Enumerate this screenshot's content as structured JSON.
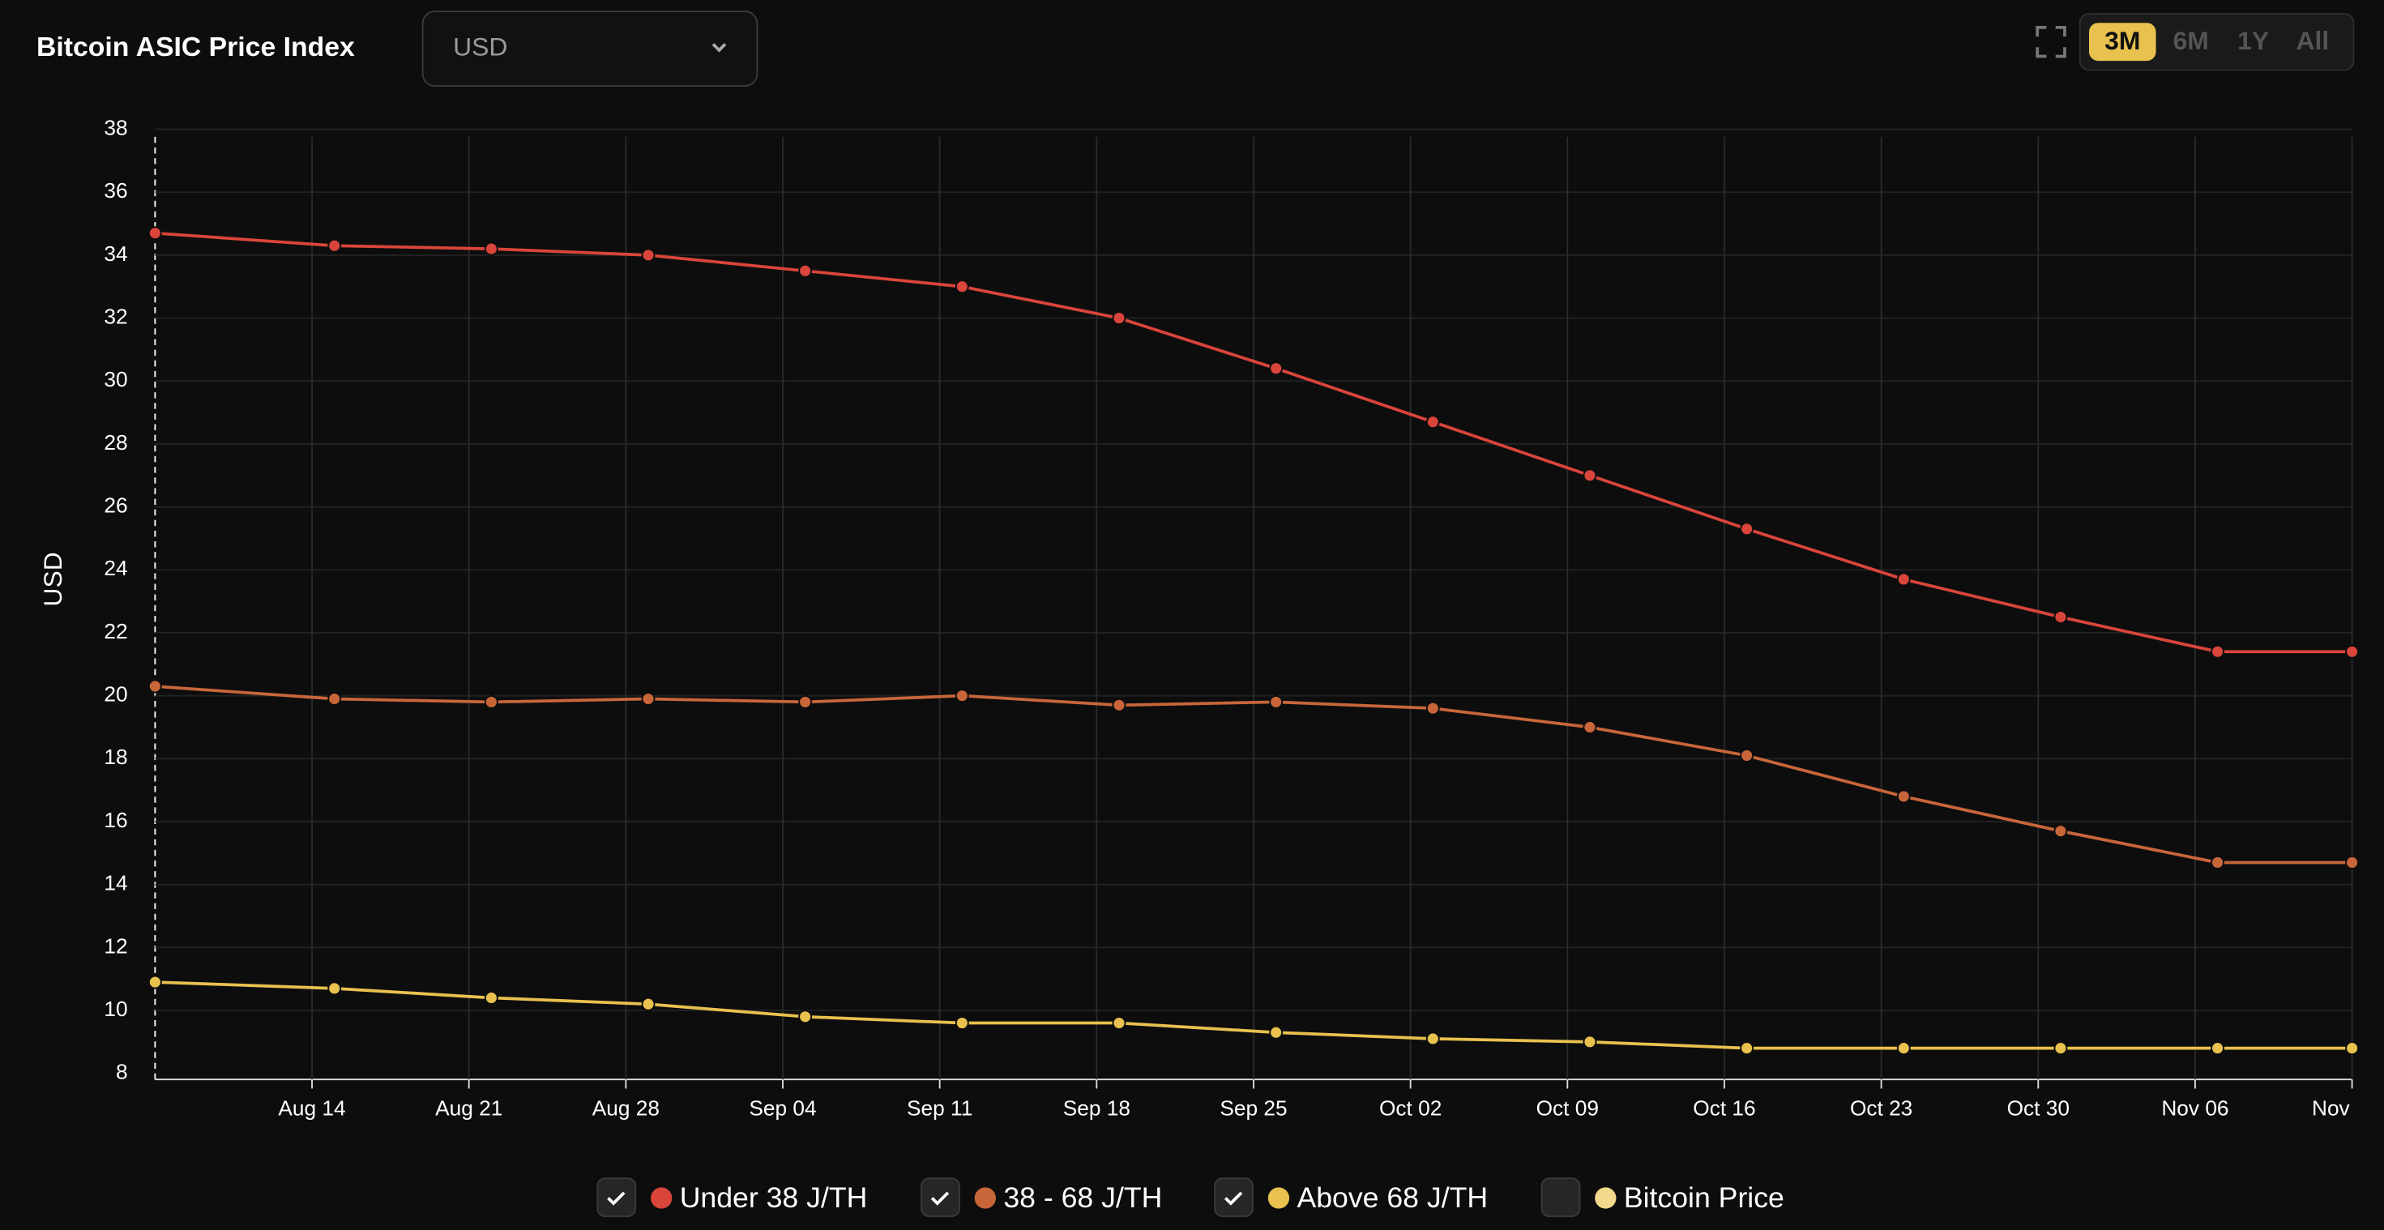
{
  "header": {
    "title": "Bitcoin ASIC Price Index",
    "currency": "USD",
    "ranges": [
      "3M",
      "6M",
      "1Y",
      "All"
    ],
    "active_range": "3M"
  },
  "chart_data": {
    "type": "line",
    "y_label": "USD",
    "x": [
      "Aug 07",
      "Aug 15",
      "Aug 22",
      "Aug 29",
      "Sep 05",
      "Sep 12",
      "Sep 19",
      "Sep 26",
      "Oct 03",
      "Oct 10",
      "Oct 17",
      "Oct 24",
      "Oct 31",
      "Nov 07",
      "Nov 13"
    ],
    "xlim": [
      "Aug 07",
      "Nov 13"
    ],
    "xticks": [
      "Aug 14",
      "Aug 21",
      "Aug 28",
      "Sep 04",
      "Sep 11",
      "Sep 18",
      "Sep 25",
      "Oct 02",
      "Oct 09",
      "Oct 16",
      "Oct 23",
      "Oct 30",
      "Nov 06",
      {
        "value": "Nov 13",
        "label": "Nov"
      }
    ],
    "ylim": [
      8,
      38
    ],
    "yticks": [
      8,
      10,
      12,
      14,
      16,
      18,
      20,
      22,
      24,
      26,
      28,
      30,
      32,
      34,
      36,
      38
    ],
    "grid": true,
    "series": [
      {
        "name": "Under 38 J/TH",
        "color": "#d9453b",
        "checked": true,
        "values": [
          34.7,
          34.3,
          34.2,
          34.0,
          33.5,
          33.0,
          32.0,
          30.4,
          28.7,
          27.0,
          25.3,
          23.7,
          22.5,
          21.4,
          21.4
        ]
      },
      {
        "name": "38 - 68 J/TH",
        "color": "#c8663a",
        "checked": true,
        "values": [
          20.3,
          19.9,
          19.8,
          19.9,
          19.8,
          20.0,
          19.7,
          19.8,
          19.6,
          19.0,
          18.1,
          16.8,
          15.7,
          14.7,
          14.7
        ]
      },
      {
        "name": "Above 68 J/TH",
        "color": "#e8c14e",
        "checked": true,
        "values": [
          10.9,
          10.7,
          10.4,
          10.2,
          9.8,
          9.6,
          9.6,
          9.3,
          9.1,
          9.0,
          8.8,
          8.8,
          8.8,
          8.8,
          8.8
        ]
      },
      {
        "name": "Bitcoin Price",
        "color": "#f3d98b",
        "checked": false
      }
    ]
  }
}
